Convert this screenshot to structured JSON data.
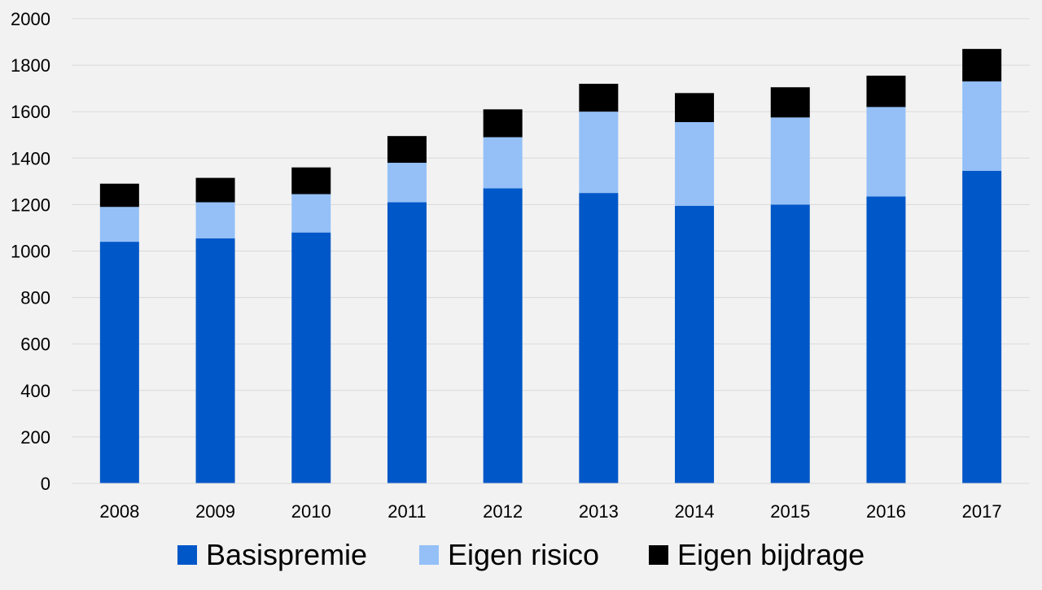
{
  "chart_data": {
    "type": "bar",
    "stacked": true,
    "title": "",
    "xlabel": "",
    "ylabel": "",
    "categories": [
      "2008",
      "2009",
      "2010",
      "2011",
      "2012",
      "2013",
      "2014",
      "2015",
      "2016",
      "2017"
    ],
    "series": [
      {
        "name": "Basispremie",
        "color": "#0057c8",
        "values": [
          1040,
          1055,
          1080,
          1210,
          1270,
          1250,
          1195,
          1200,
          1235,
          1345
        ]
      },
      {
        "name": "Eigen risico",
        "color": "#94c0f7",
        "values": [
          150,
          155,
          165,
          170,
          220,
          350,
          360,
          375,
          385,
          385
        ]
      },
      {
        "name": "Eigen bijdrage",
        "color": "#000000",
        "values": [
          100,
          105,
          115,
          115,
          120,
          120,
          125,
          130,
          135,
          140
        ]
      }
    ],
    "ylim": [
      0,
      2000
    ],
    "yticks": [
      0,
      200,
      400,
      600,
      800,
      1000,
      1200,
      1400,
      1600,
      1800,
      2000
    ],
    "grid": true,
    "legend_position": "bottom"
  }
}
